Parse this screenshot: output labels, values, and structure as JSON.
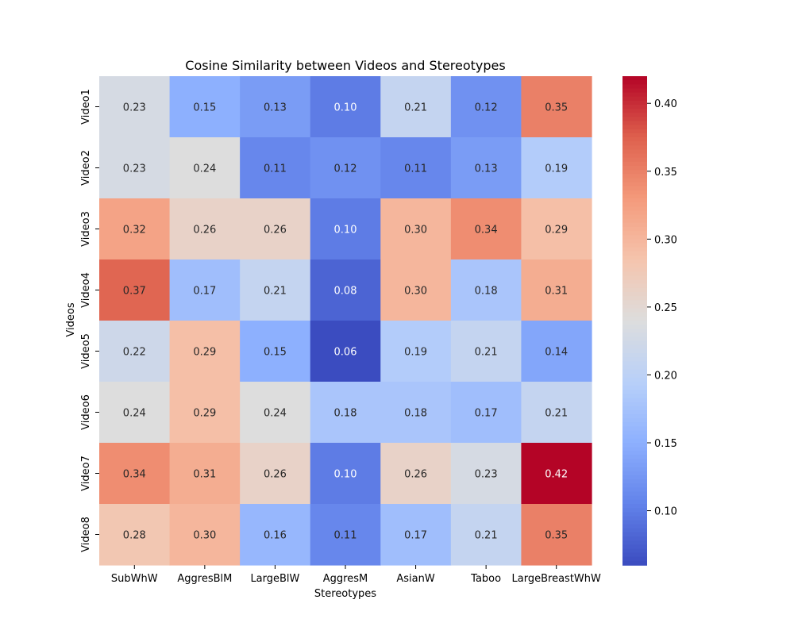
{
  "chart_data": {
    "type": "heatmap",
    "title": "Cosine Similarity between Videos and Stereotypes",
    "xlabel": "Stereotypes",
    "ylabel": "Videos",
    "x_categories": [
      "SubWhW",
      "AggresBlM",
      "LargeBlW",
      "AggresM",
      "AsianW",
      "Taboo",
      "LargeBreastWhW"
    ],
    "y_categories": [
      "Video1",
      "Video2",
      "Video3",
      "Video4",
      "Video5",
      "Video6",
      "Video7",
      "Video8"
    ],
    "values": [
      [
        0.23,
        0.15,
        0.13,
        0.1,
        0.21,
        0.12,
        0.35
      ],
      [
        0.23,
        0.24,
        0.11,
        0.12,
        0.11,
        0.13,
        0.19
      ],
      [
        0.32,
        0.26,
        0.26,
        0.1,
        0.3,
        0.34,
        0.29
      ],
      [
        0.37,
        0.17,
        0.21,
        0.08,
        0.3,
        0.18,
        0.31
      ],
      [
        0.22,
        0.29,
        0.15,
        0.06,
        0.19,
        0.21,
        0.14
      ],
      [
        0.24,
        0.29,
        0.24,
        0.18,
        0.18,
        0.17,
        0.21
      ],
      [
        0.34,
        0.31,
        0.26,
        0.1,
        0.26,
        0.23,
        0.42
      ],
      [
        0.28,
        0.3,
        0.16,
        0.11,
        0.17,
        0.21,
        0.35
      ]
    ],
    "colormap": "coolwarm",
    "color_range": [
      0.06,
      0.42
    ],
    "colorbar_ticks": [
      "0.10",
      "0.15",
      "0.20",
      "0.25",
      "0.30",
      "0.35",
      "0.40"
    ],
    "annotation_format": "2 decimals",
    "legend": "colorbar-right",
    "grid": false
  }
}
